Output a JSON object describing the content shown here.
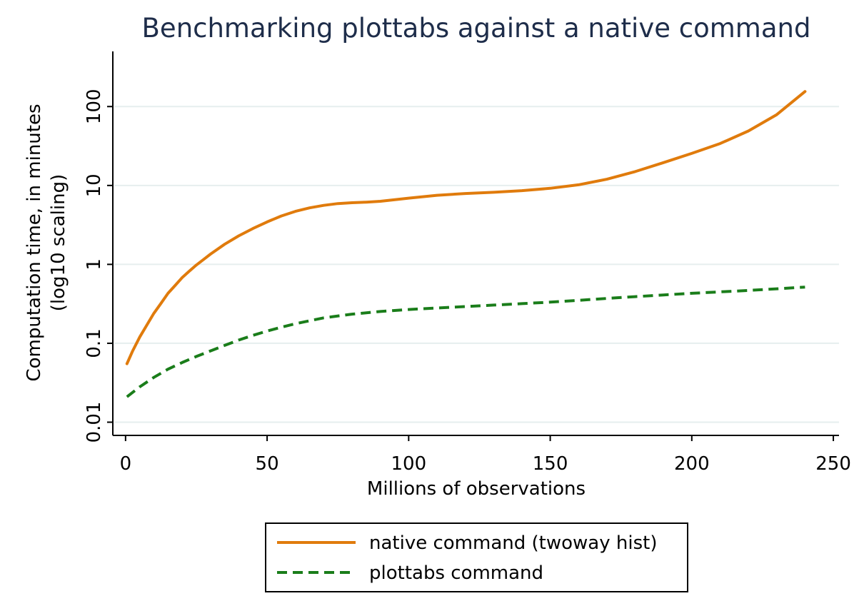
{
  "chart_data": {
    "type": "line",
    "title": "Benchmarking plottabs against a native command",
    "xlabel": "Millions of observations",
    "ylabel_lines": [
      "Computation time, in minutes",
      "(log10 scaling)"
    ],
    "x_ticks": [
      0,
      50,
      100,
      150,
      200,
      250
    ],
    "x_tick_labels": [
      "0",
      "50",
      "100",
      "150",
      "200",
      "250"
    ],
    "y_ticks": [
      0.01,
      0.1,
      1,
      10,
      100
    ],
    "y_tick_labels": [
      "0.01",
      "0.1",
      "1",
      "10",
      "100"
    ],
    "y_scale": "log10",
    "xlim": [
      -4.5,
      252
    ],
    "ylim": [
      0.0068,
      500
    ],
    "grid": "horizontal",
    "legend_position": "bottom",
    "colors": {
      "native": "#e07b0c",
      "plottabs": "#1a7d1a",
      "grid": "#e6eeee",
      "axis": "#000000",
      "title": "#1e2d4a"
    },
    "series": [
      {
        "name": "native command (twoway hist)",
        "style": "solid",
        "x": [
          0.5,
          2.5,
          5,
          7.5,
          10,
          12.5,
          15,
          17.5,
          20,
          22.5,
          25,
          27.5,
          30,
          35,
          40,
          45,
          50,
          55,
          60,
          65,
          70,
          75,
          80,
          85,
          90,
          100,
          110,
          120,
          130,
          140,
          150,
          160,
          170,
          180,
          190,
          200,
          210,
          220,
          230,
          240
        ],
        "y": [
          0.055,
          0.08,
          0.12,
          0.17,
          0.24,
          0.32,
          0.43,
          0.54,
          0.68,
          0.82,
          0.98,
          1.15,
          1.35,
          1.8,
          2.3,
          2.85,
          3.45,
          4.1,
          4.7,
          5.2,
          5.6,
          5.9,
          6.05,
          6.15,
          6.3,
          6.9,
          7.5,
          7.9,
          8.2,
          8.6,
          9.2,
          10.2,
          12.0,
          15.0,
          19.5,
          25.5,
          34.0,
          49.0,
          79.0,
          155.0
        ]
      },
      {
        "name": "plottabs command",
        "style": "dashed",
        "x": [
          0.5,
          5,
          10,
          15,
          20,
          25,
          30,
          35,
          40,
          45,
          50,
          55,
          60,
          65,
          70,
          80,
          90,
          100,
          110,
          120,
          130,
          140,
          150,
          160,
          170,
          180,
          190,
          200,
          210,
          220,
          230,
          240
        ],
        "y": [
          0.021,
          0.028,
          0.037,
          0.047,
          0.057,
          0.068,
          0.08,
          0.094,
          0.11,
          0.126,
          0.143,
          0.16,
          0.177,
          0.193,
          0.21,
          0.234,
          0.253,
          0.268,
          0.28,
          0.292,
          0.305,
          0.318,
          0.332,
          0.35,
          0.37,
          0.39,
          0.41,
          0.43,
          0.448,
          0.467,
          0.49,
          0.515
        ]
      }
    ]
  }
}
